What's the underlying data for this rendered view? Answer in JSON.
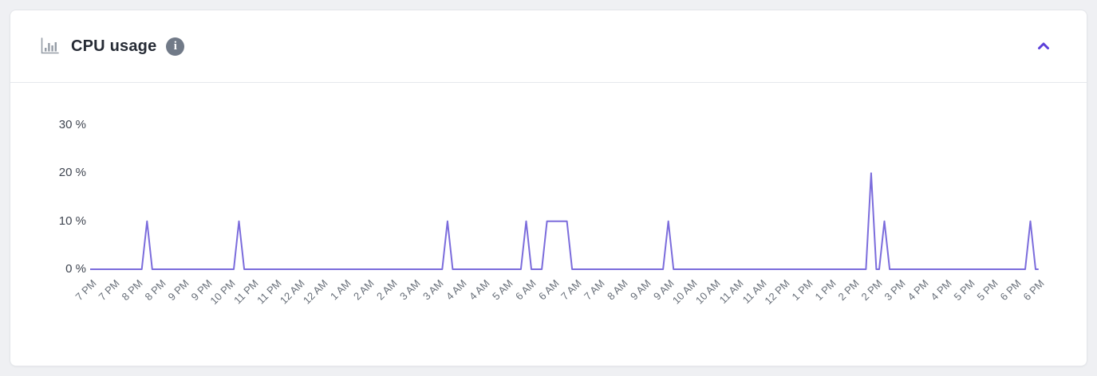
{
  "card": {
    "header": {
      "title": "CPU usage",
      "chart_icon": "bar-chart-icon",
      "info_icon": "info-icon",
      "collapse_icon": "chevron-up-icon"
    }
  },
  "colors": {
    "line": "#7b6cdc",
    "accent_chevron": "#5b3fd9",
    "title_text": "#262b35",
    "y_tick_text": "#3f4550",
    "x_tick_text": "#676e78",
    "icon_gray": "#959ca6",
    "info_badge_bg": "#717a88",
    "card_border": "#e4e6ea",
    "page_bg": "#eff0f3"
  },
  "chart_data": {
    "type": "line",
    "title": "CPU usage",
    "unit": "%",
    "grid": false,
    "legend": "none",
    "line_color": "#7b6cdc",
    "ylim": [
      0,
      35
    ],
    "yticks": [
      "30 %",
      "20 %",
      "10 %",
      "0 %"
    ],
    "xticks": [
      "7 PM",
      "7 PM",
      "8 PM",
      "8 PM",
      "9 PM",
      "9 PM",
      "10 PM",
      "11 PM",
      "11 PM",
      "12 AM",
      "12 AM",
      "1 AM",
      "2 AM",
      "2 AM",
      "3 AM",
      "3 AM",
      "4 AM",
      "4 AM",
      "5 AM",
      "6 AM",
      "6 AM",
      "7 AM",
      "7 AM",
      "8 AM",
      "9 AM",
      "9 AM",
      "10 AM",
      "10 AM",
      "11 AM",
      "11 AM",
      "12 PM",
      "1 PM",
      "1 PM",
      "2 PM",
      "2 PM",
      "3 PM",
      "4 PM",
      "4 PM",
      "5 PM",
      "5 PM",
      "6 PM",
      "6 PM"
    ],
    "series": [
      {
        "name": "CPU usage",
        "points_note": "x is percent of plot width (7 PM -> 6 PM), y is CPU percent",
        "points": [
          [
            0,
            0
          ],
          [
            5.45,
            0
          ],
          [
            6.0,
            10
          ],
          [
            6.55,
            0
          ],
          [
            15.15,
            0
          ],
          [
            15.7,
            10
          ],
          [
            16.25,
            0
          ],
          [
            37.15,
            0
          ],
          [
            37.7,
            10
          ],
          [
            38.25,
            0
          ],
          [
            45.45,
            0
          ],
          [
            46.0,
            10
          ],
          [
            46.55,
            0
          ],
          [
            47.65,
            0
          ],
          [
            48.2,
            10
          ],
          [
            50.3,
            10
          ],
          [
            50.85,
            0
          ],
          [
            60.45,
            0
          ],
          [
            61.0,
            10
          ],
          [
            61.55,
            0
          ],
          [
            81.85,
            0
          ],
          [
            82.4,
            20
          ],
          [
            82.95,
            0
          ],
          [
            83.25,
            0
          ],
          [
            83.8,
            10
          ],
          [
            84.35,
            0
          ],
          [
            98.65,
            0
          ],
          [
            99.2,
            10
          ],
          [
            99.75,
            0
          ],
          [
            100,
            0
          ]
        ],
        "spike_values": {
          "peaks_10pct": 8,
          "peaks_20pct": 1,
          "plateau_10pct": "around 6 AM"
        }
      }
    ]
  }
}
